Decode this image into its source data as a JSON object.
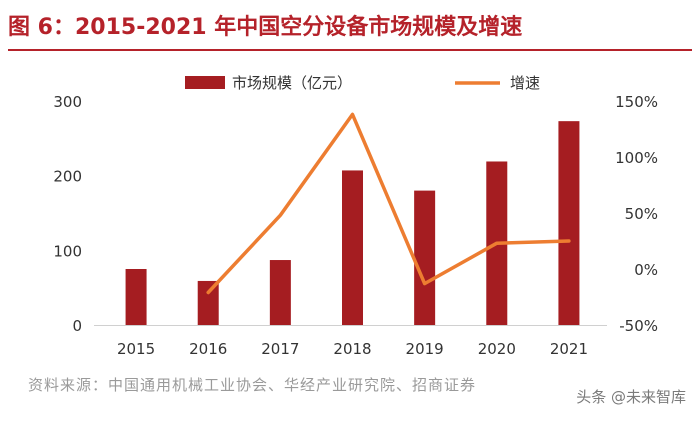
{
  "header": {
    "title": "图 6：2015-2021 年中国空分设备市场规模及增速"
  },
  "footer": {
    "source": "资料来源：中国通用机械工业协会、华经产业研究院、招商证券",
    "watermark": "头条 @未来智库"
  },
  "colors": {
    "accent": "#b5222a",
    "bar": "#a51d21",
    "line": "#ed7d31",
    "axis_text": "#333333"
  },
  "chart_data": {
    "type": "bar+line",
    "categories": [
      "2015",
      "2016",
      "2017",
      "2018",
      "2019",
      "2020",
      "2021"
    ],
    "series": [
      {
        "name": "市场规模（亿元）",
        "type": "bar",
        "axis": "left",
        "values": [
          75,
          59,
          87,
          207,
          180,
          219,
          273
        ]
      },
      {
        "name": "增速",
        "type": "line",
        "axis": "right",
        "values": [
          null,
          -21,
          48,
          138,
          -13,
          23,
          25
        ]
      }
    ],
    "y_left": {
      "min": 0,
      "max": 300,
      "ticks": [
        0,
        100,
        200,
        300
      ]
    },
    "y_right": {
      "min": -50,
      "max": 150,
      "ticks": [
        -50,
        0,
        50,
        100,
        150
      ],
      "tick_labels": [
        "-50%",
        "0%",
        "50%",
        "100%",
        "150%"
      ]
    },
    "legend_position": "top-center",
    "grid": false
  }
}
